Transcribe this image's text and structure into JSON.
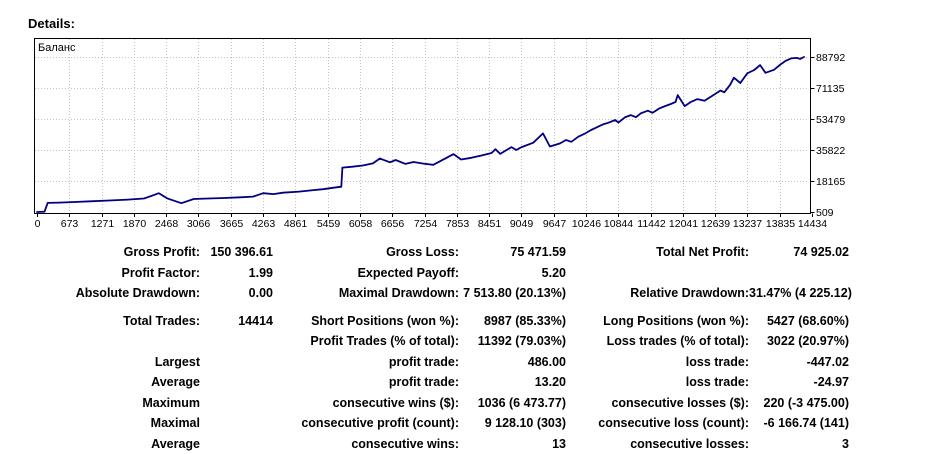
{
  "header": {
    "details_label": "Details:"
  },
  "colors": {
    "line": "#000080",
    "grid": "#c4c4c4",
    "border": "#000000",
    "background": "#ffffff"
  },
  "chart_data": {
    "type": "line",
    "title": "Баланс",
    "xlabel": "",
    "ylabel": "",
    "grid": true,
    "y_axis_side": "right",
    "legend_position": "top-left-inside",
    "xlim": [
      0,
      14434
    ],
    "ylim": [
      509,
      88792
    ],
    "x_ticks": [
      0,
      673,
      1271,
      1870,
      2468,
      3066,
      3665,
      4263,
      4861,
      5459,
      6058,
      6656,
      7254,
      7853,
      8451,
      9049,
      9647,
      10246,
      10844,
      11442,
      12041,
      12639,
      13237,
      13835,
      14434
    ],
    "y_ticks": [
      509,
      18165,
      35822,
      53479,
      71135,
      88792
    ],
    "series": [
      {
        "name": "Баланс",
        "color": "#000080",
        "points": [
          [
            0,
            500
          ],
          [
            140,
            700
          ],
          [
            200,
            5700
          ],
          [
            420,
            5850
          ],
          [
            700,
            6200
          ],
          [
            1000,
            6600
          ],
          [
            1300,
            7000
          ],
          [
            1700,
            7600
          ],
          [
            2000,
            8200
          ],
          [
            2150,
            9800
          ],
          [
            2280,
            11200
          ],
          [
            2430,
            8300
          ],
          [
            2700,
            5500
          ],
          [
            2930,
            7900
          ],
          [
            3200,
            8200
          ],
          [
            3500,
            8500
          ],
          [
            3800,
            8900
          ],
          [
            4040,
            9300
          ],
          [
            4230,
            11200
          ],
          [
            4420,
            10700
          ],
          [
            4600,
            11500
          ],
          [
            4900,
            12100
          ],
          [
            5170,
            13000
          ],
          [
            5350,
            13500
          ],
          [
            5530,
            14300
          ],
          [
            5690,
            14900
          ],
          [
            5710,
            25800
          ],
          [
            5900,
            26300
          ],
          [
            6090,
            27000
          ],
          [
            6280,
            28200
          ],
          [
            6410,
            31000
          ],
          [
            6600,
            28800
          ],
          [
            6705,
            30100
          ],
          [
            6890,
            27900
          ],
          [
            7040,
            29000
          ],
          [
            7225,
            28100
          ],
          [
            7410,
            27400
          ],
          [
            7790,
            33500
          ],
          [
            7930,
            30400
          ],
          [
            8120,
            31400
          ],
          [
            8290,
            32500
          ],
          [
            8500,
            34100
          ],
          [
            8570,
            36300
          ],
          [
            8660,
            33600
          ],
          [
            8870,
            37500
          ],
          [
            8960,
            35800
          ],
          [
            9050,
            37300
          ],
          [
            9280,
            40000
          ],
          [
            9460,
            45300
          ],
          [
            9590,
            37800
          ],
          [
            9780,
            39600
          ],
          [
            9890,
            41500
          ],
          [
            9990,
            40500
          ],
          [
            10120,
            43400
          ],
          [
            10250,
            45300
          ],
          [
            10360,
            47200
          ],
          [
            10490,
            49100
          ],
          [
            10580,
            50400
          ],
          [
            10680,
            51300
          ],
          [
            10810,
            52900
          ],
          [
            10870,
            51400
          ],
          [
            10990,
            54400
          ],
          [
            11100,
            55700
          ],
          [
            11200,
            54500
          ],
          [
            11290,
            56700
          ],
          [
            11420,
            58200
          ],
          [
            11510,
            57000
          ],
          [
            11640,
            59600
          ],
          [
            11750,
            60900
          ],
          [
            11850,
            62000
          ],
          [
            11940,
            63200
          ],
          [
            11980,
            67100
          ],
          [
            12110,
            60800
          ],
          [
            12220,
            63100
          ],
          [
            12350,
            64800
          ],
          [
            12480,
            63900
          ],
          [
            12660,
            67400
          ],
          [
            12780,
            69700
          ],
          [
            12850,
            68700
          ],
          [
            12960,
            73000
          ],
          [
            13030,
            77000
          ],
          [
            13150,
            74000
          ],
          [
            13280,
            79500
          ],
          [
            13410,
            81400
          ],
          [
            13520,
            84200
          ],
          [
            13620,
            79800
          ],
          [
            13780,
            81500
          ],
          [
            13900,
            84500
          ],
          [
            14000,
            86600
          ],
          [
            14100,
            88000
          ],
          [
            14200,
            88300
          ],
          [
            14270,
            87700
          ],
          [
            14340,
            88792
          ]
        ]
      }
    ]
  },
  "stats": {
    "rows": [
      {
        "cells": [
          "Gross Profit:",
          "150 396.61",
          "Gross Loss:",
          "75 471.59",
          "Total Net Profit:",
          "74 925.02"
        ]
      },
      {
        "cells": [
          "Profit Factor:",
          "1.99",
          "Expected Payoff:",
          "5.20",
          "",
          ""
        ]
      },
      {
        "cells": [
          "Absolute Drawdown:",
          "0.00",
          "Maximal Drawdown:",
          "7 513.80 (20.13%)",
          "Relative Drawdown:",
          "31.47% (4 225.12)"
        ]
      },
      {
        "gap_before": true,
        "cells": [
          "Total Trades:",
          "14414",
          "Short Positions (won %):",
          "8987 (85.33%)",
          "Long Positions (won %):",
          "5427 (68.60%)"
        ]
      },
      {
        "cells": [
          "",
          "",
          "Profit Trades (% of total):",
          "11392 (79.03%)",
          "Loss trades (% of total):",
          "3022 (20.97%)"
        ]
      },
      {
        "cells": [
          "Largest",
          "",
          "profit trade:",
          "486.00",
          "loss trade:",
          "-447.02"
        ]
      },
      {
        "cells": [
          "Average",
          "",
          "profit trade:",
          "13.20",
          "loss trade:",
          "-24.97"
        ]
      },
      {
        "cells": [
          "Maximum",
          "",
          "consecutive wins ($):",
          "1036 (6 473.77)",
          "consecutive losses ($):",
          "220 (-3 475.00)"
        ]
      },
      {
        "cells": [
          "Maximal",
          "",
          "consecutive profit (count):",
          "9 128.10 (303)",
          "consecutive loss (count):",
          "-6 166.74 (141)"
        ]
      },
      {
        "cells": [
          "Average",
          "",
          "consecutive wins:",
          "13",
          "consecutive losses:",
          "3"
        ]
      }
    ]
  }
}
